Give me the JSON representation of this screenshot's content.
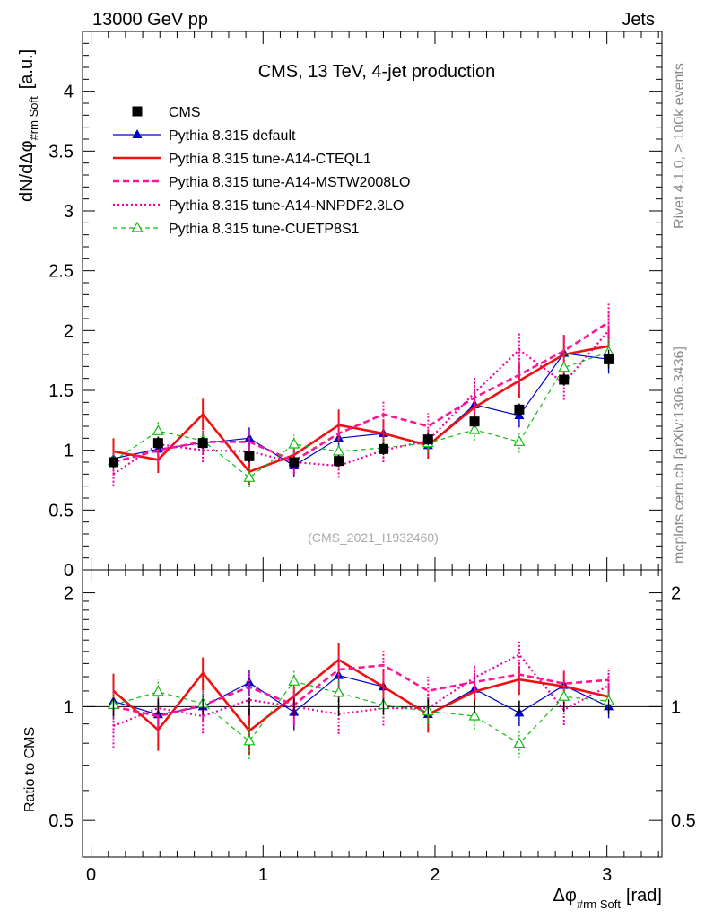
{
  "header": {
    "left": "13000 GeV pp",
    "right": "Jets"
  },
  "side_labels": {
    "rivet": "Rivet 4.1.0, ≥ 100k events",
    "mcplots": "mcplots.cern.ch [arXiv:1306.3436]"
  },
  "chart_data": [
    {
      "type": "line",
      "title": "CMS, 13 TeV, 4-jet production",
      "watermark": "(CMS_2021_I1932460)",
      "ylabel_main": "dN/dΔφ",
      "ylabel_sub": "#rm Soft",
      "ylabel_unit": "[a.u.]",
      "xlabel_main": "Δφ",
      "xlabel_sub": "#rm Soft",
      "xlabel_unit": "[rad]",
      "xlim": [
        -0.05,
        3.32
      ],
      "ylim": [
        0,
        4.5
      ],
      "xticks": [
        "0",
        "1",
        "2",
        "3"
      ],
      "yticks": [
        "0",
        "0.5",
        "1",
        "1.5",
        "2",
        "2.5",
        "3",
        "3.5",
        "4"
      ],
      "x": [
        0.13,
        0.39,
        0.65,
        0.92,
        1.18,
        1.44,
        1.7,
        1.96,
        2.23,
        2.49,
        2.75,
        3.01
      ],
      "series": [
        {
          "name": "CMS",
          "color": "#000000",
          "style": "data",
          "values": [
            0.9,
            1.06,
            1.06,
            0.95,
            0.9,
            0.91,
            1.01,
            1.09,
            1.24,
            1.34,
            1.59,
            1.76
          ],
          "errors": [
            0.05,
            0.05,
            0.05,
            0.05,
            0.05,
            0.05,
            0.05,
            0.05,
            0.05,
            0.05,
            0.05,
            0.08
          ]
        },
        {
          "name": "Pythia 8.315 default",
          "color": "#0000cc",
          "style": "solid-triangle",
          "values": [
            0.93,
            1.01,
            1.06,
            1.1,
            0.87,
            1.1,
            1.14,
            1.04,
            1.38,
            1.29,
            1.81,
            1.76
          ],
          "errors": [
            0.09,
            0.09,
            0.09,
            0.09,
            0.09,
            0.09,
            0.09,
            0.09,
            0.1,
            0.1,
            0.12,
            0.12
          ]
        },
        {
          "name": "Pythia 8.315 tune-A14-CTEQL1",
          "color": "#ee1111",
          "style": "solid-thick",
          "values": [
            0.99,
            0.92,
            1.3,
            0.82,
            0.96,
            1.21,
            1.14,
            1.04,
            1.36,
            1.58,
            1.8,
            1.87
          ],
          "errors": [
            0.11,
            0.11,
            0.13,
            0.11,
            0.11,
            0.13,
            0.12,
            0.11,
            0.14,
            0.14,
            0.16,
            0.16
          ]
        },
        {
          "name": "Pythia 8.315 tune-A14-MSTW2008LO",
          "color": "#ff1493",
          "style": "dashed",
          "values": [
            0.9,
            1.0,
            1.07,
            1.07,
            0.91,
            1.14,
            1.3,
            1.2,
            1.44,
            1.63,
            1.83,
            2.07
          ],
          "errors": [
            0.1,
            0.1,
            0.1,
            0.1,
            0.1,
            0.11,
            0.12,
            0.11,
            0.13,
            0.14,
            0.15,
            0.16
          ]
        },
        {
          "name": "Pythia 8.315 tune-A14-NNPDF2.3LO",
          "color": "#ee00aa",
          "style": "dotted",
          "values": [
            0.8,
            1.05,
            1.0,
            0.99,
            0.9,
            0.87,
            1.0,
            1.08,
            1.48,
            1.84,
            1.56,
            2.0
          ],
          "errors": [
            0.1,
            0.1,
            0.1,
            0.1,
            0.1,
            0.1,
            0.1,
            0.1,
            0.13,
            0.15,
            0.14,
            0.16
          ]
        },
        {
          "name": "Pythia 8.315 tune-CUETP8S1",
          "color": "#11bb11",
          "style": "dashed-open-triangle",
          "values": [
            0.91,
            1.16,
            1.08,
            0.77,
            1.05,
            0.99,
            1.02,
            1.06,
            1.17,
            1.07,
            1.69,
            1.82
          ],
          "errors": [
            0.08,
            0.09,
            0.09,
            0.08,
            0.08,
            0.08,
            0.08,
            0.08,
            0.09,
            0.09,
            0.11,
            0.12
          ]
        }
      ]
    },
    {
      "type": "line",
      "ylabel": "Ratio to CMS",
      "ylim": [
        0.4,
        2.3
      ],
      "yscale": "log",
      "yticks": [
        "0.5",
        "1",
        "2"
      ],
      "reference_line": 1
    }
  ]
}
